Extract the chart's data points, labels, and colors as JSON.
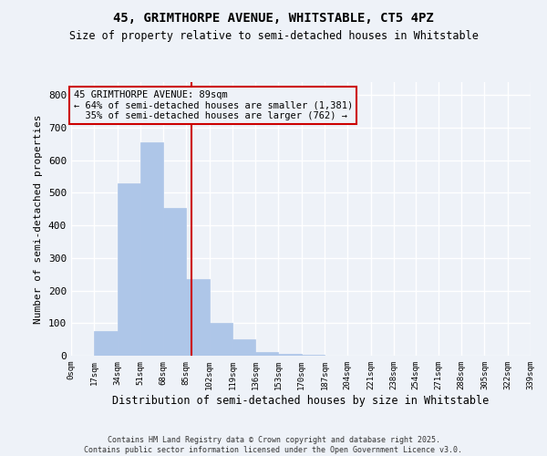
{
  "title": "45, GRIMTHORPE AVENUE, WHITSTABLE, CT5 4PZ",
  "subtitle": "Size of property relative to semi-detached houses in Whitstable",
  "xlabel": "Distribution of semi-detached houses by size in Whitstable",
  "ylabel": "Number of semi-detached properties",
  "bin_edges": [
    0,
    17,
    34,
    51,
    68,
    85,
    102,
    119,
    136,
    153,
    170,
    187,
    204,
    221,
    238,
    254,
    271,
    288,
    305,
    322,
    339
  ],
  "bar_heights": [
    0,
    75,
    530,
    655,
    455,
    235,
    100,
    50,
    10,
    5,
    2,
    1,
    0,
    0,
    0,
    0,
    0,
    0,
    0,
    0
  ],
  "bar_color": "#aec6e8",
  "bar_edgecolor": "#aec6e8",
  "property_line_x": 89,
  "property_line_color": "#cc0000",
  "annotation_text": "45 GRIMTHORPE AVENUE: 89sqm\n← 64% of semi-detached houses are smaller (1,381)\n  35% of semi-detached houses are larger (762) →",
  "annotation_box_edgecolor": "#cc0000",
  "ylim": [
    0,
    840
  ],
  "yticks": [
    0,
    100,
    200,
    300,
    400,
    500,
    600,
    700,
    800
  ],
  "tick_labels": [
    "0sqm",
    "17sqm",
    "34sqm",
    "51sqm",
    "68sqm",
    "85sqm",
    "102sqm",
    "119sqm",
    "136sqm",
    "153sqm",
    "170sqm",
    "187sqm",
    "204sqm",
    "221sqm",
    "238sqm",
    "254sqm",
    "271sqm",
    "288sqm",
    "305sqm",
    "322sqm",
    "339sqm"
  ],
  "footer": "Contains HM Land Registry data © Crown copyright and database right 2025.\nContains public sector information licensed under the Open Government Licence v3.0.",
  "background_color": "#eef2f8",
  "grid_color": "#ffffff"
}
